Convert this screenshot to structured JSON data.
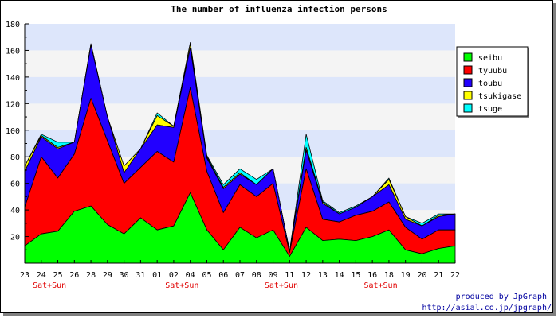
{
  "chart_data": {
    "type": "area",
    "stacked": true,
    "title": "The number of influenza infection persons",
    "xlabel": "",
    "ylabel": "",
    "ylim": [
      0,
      180
    ],
    "yticks": [
      20,
      40,
      60,
      80,
      100,
      120,
      140,
      160,
      180
    ],
    "grid": true,
    "legend_position": "right",
    "categories": [
      "23",
      "24",
      "25",
      "26",
      "28",
      "29",
      "30",
      "31",
      "01",
      "02",
      "04",
      "05",
      "06",
      "07",
      "08",
      "09",
      "11",
      "12",
      "13",
      "14",
      "15",
      "16",
      "18",
      "19",
      "20",
      "21",
      "22"
    ],
    "weekend_labels": [
      {
        "text": "Sat+Sun",
        "at": [
          "24",
          "25"
        ]
      },
      {
        "text": "Sat+Sun",
        "at": [
          "02",
          "04"
        ]
      },
      {
        "text": "Sat+Sun",
        "at": [
          "09",
          "11"
        ]
      },
      {
        "text": "Sat+Sun",
        "at": [
          "16",
          "18"
        ]
      }
    ],
    "series": [
      {
        "name": "seibu",
        "color": "#00ff00",
        "values": [
          13,
          22,
          24,
          39,
          43,
          29,
          22,
          34,
          25,
          28,
          53,
          25,
          10,
          27,
          19,
          25,
          5,
          27,
          17,
          18,
          17,
          20,
          25,
          10,
          7,
          11,
          13
        ]
      },
      {
        "name": "tyuubu",
        "color": "#ff0000",
        "values": [
          29,
          58,
          40,
          43,
          81,
          63,
          38,
          38,
          59,
          48,
          79,
          44,
          28,
          32,
          31,
          35,
          3,
          44,
          16,
          13,
          19,
          19,
          21,
          17,
          11,
          14,
          12
        ]
      },
      {
        "name": "toubu",
        "color": "#2200ff",
        "values": [
          27,
          15,
          22,
          9,
          40,
          18,
          8,
          14,
          20,
          26,
          30,
          10,
          18,
          8,
          9,
          11,
          1,
          14,
          12,
          6,
          6,
          11,
          13,
          6,
          10,
          10,
          12
        ]
      },
      {
        "name": "tsukigase",
        "color": "#ffff00",
        "values": [
          4,
          1,
          1,
          0,
          1,
          0,
          5,
          0,
          7,
          1,
          3,
          1,
          1,
          1,
          0,
          0,
          0,
          2,
          1,
          0,
          0,
          0,
          4,
          2,
          0,
          1,
          0
        ]
      },
      {
        "name": "tsuge",
        "color": "#00ffff",
        "values": [
          0,
          1,
          4,
          0,
          0,
          0,
          0,
          0,
          2,
          0,
          1,
          1,
          2,
          3,
          4,
          0,
          0,
          10,
          1,
          1,
          1,
          0,
          1,
          0,
          2,
          1,
          0
        ]
      }
    ]
  },
  "footer": {
    "line1": "produced by JpGraph",
    "line2": "http://asial.co.jp/jpgraph/"
  }
}
